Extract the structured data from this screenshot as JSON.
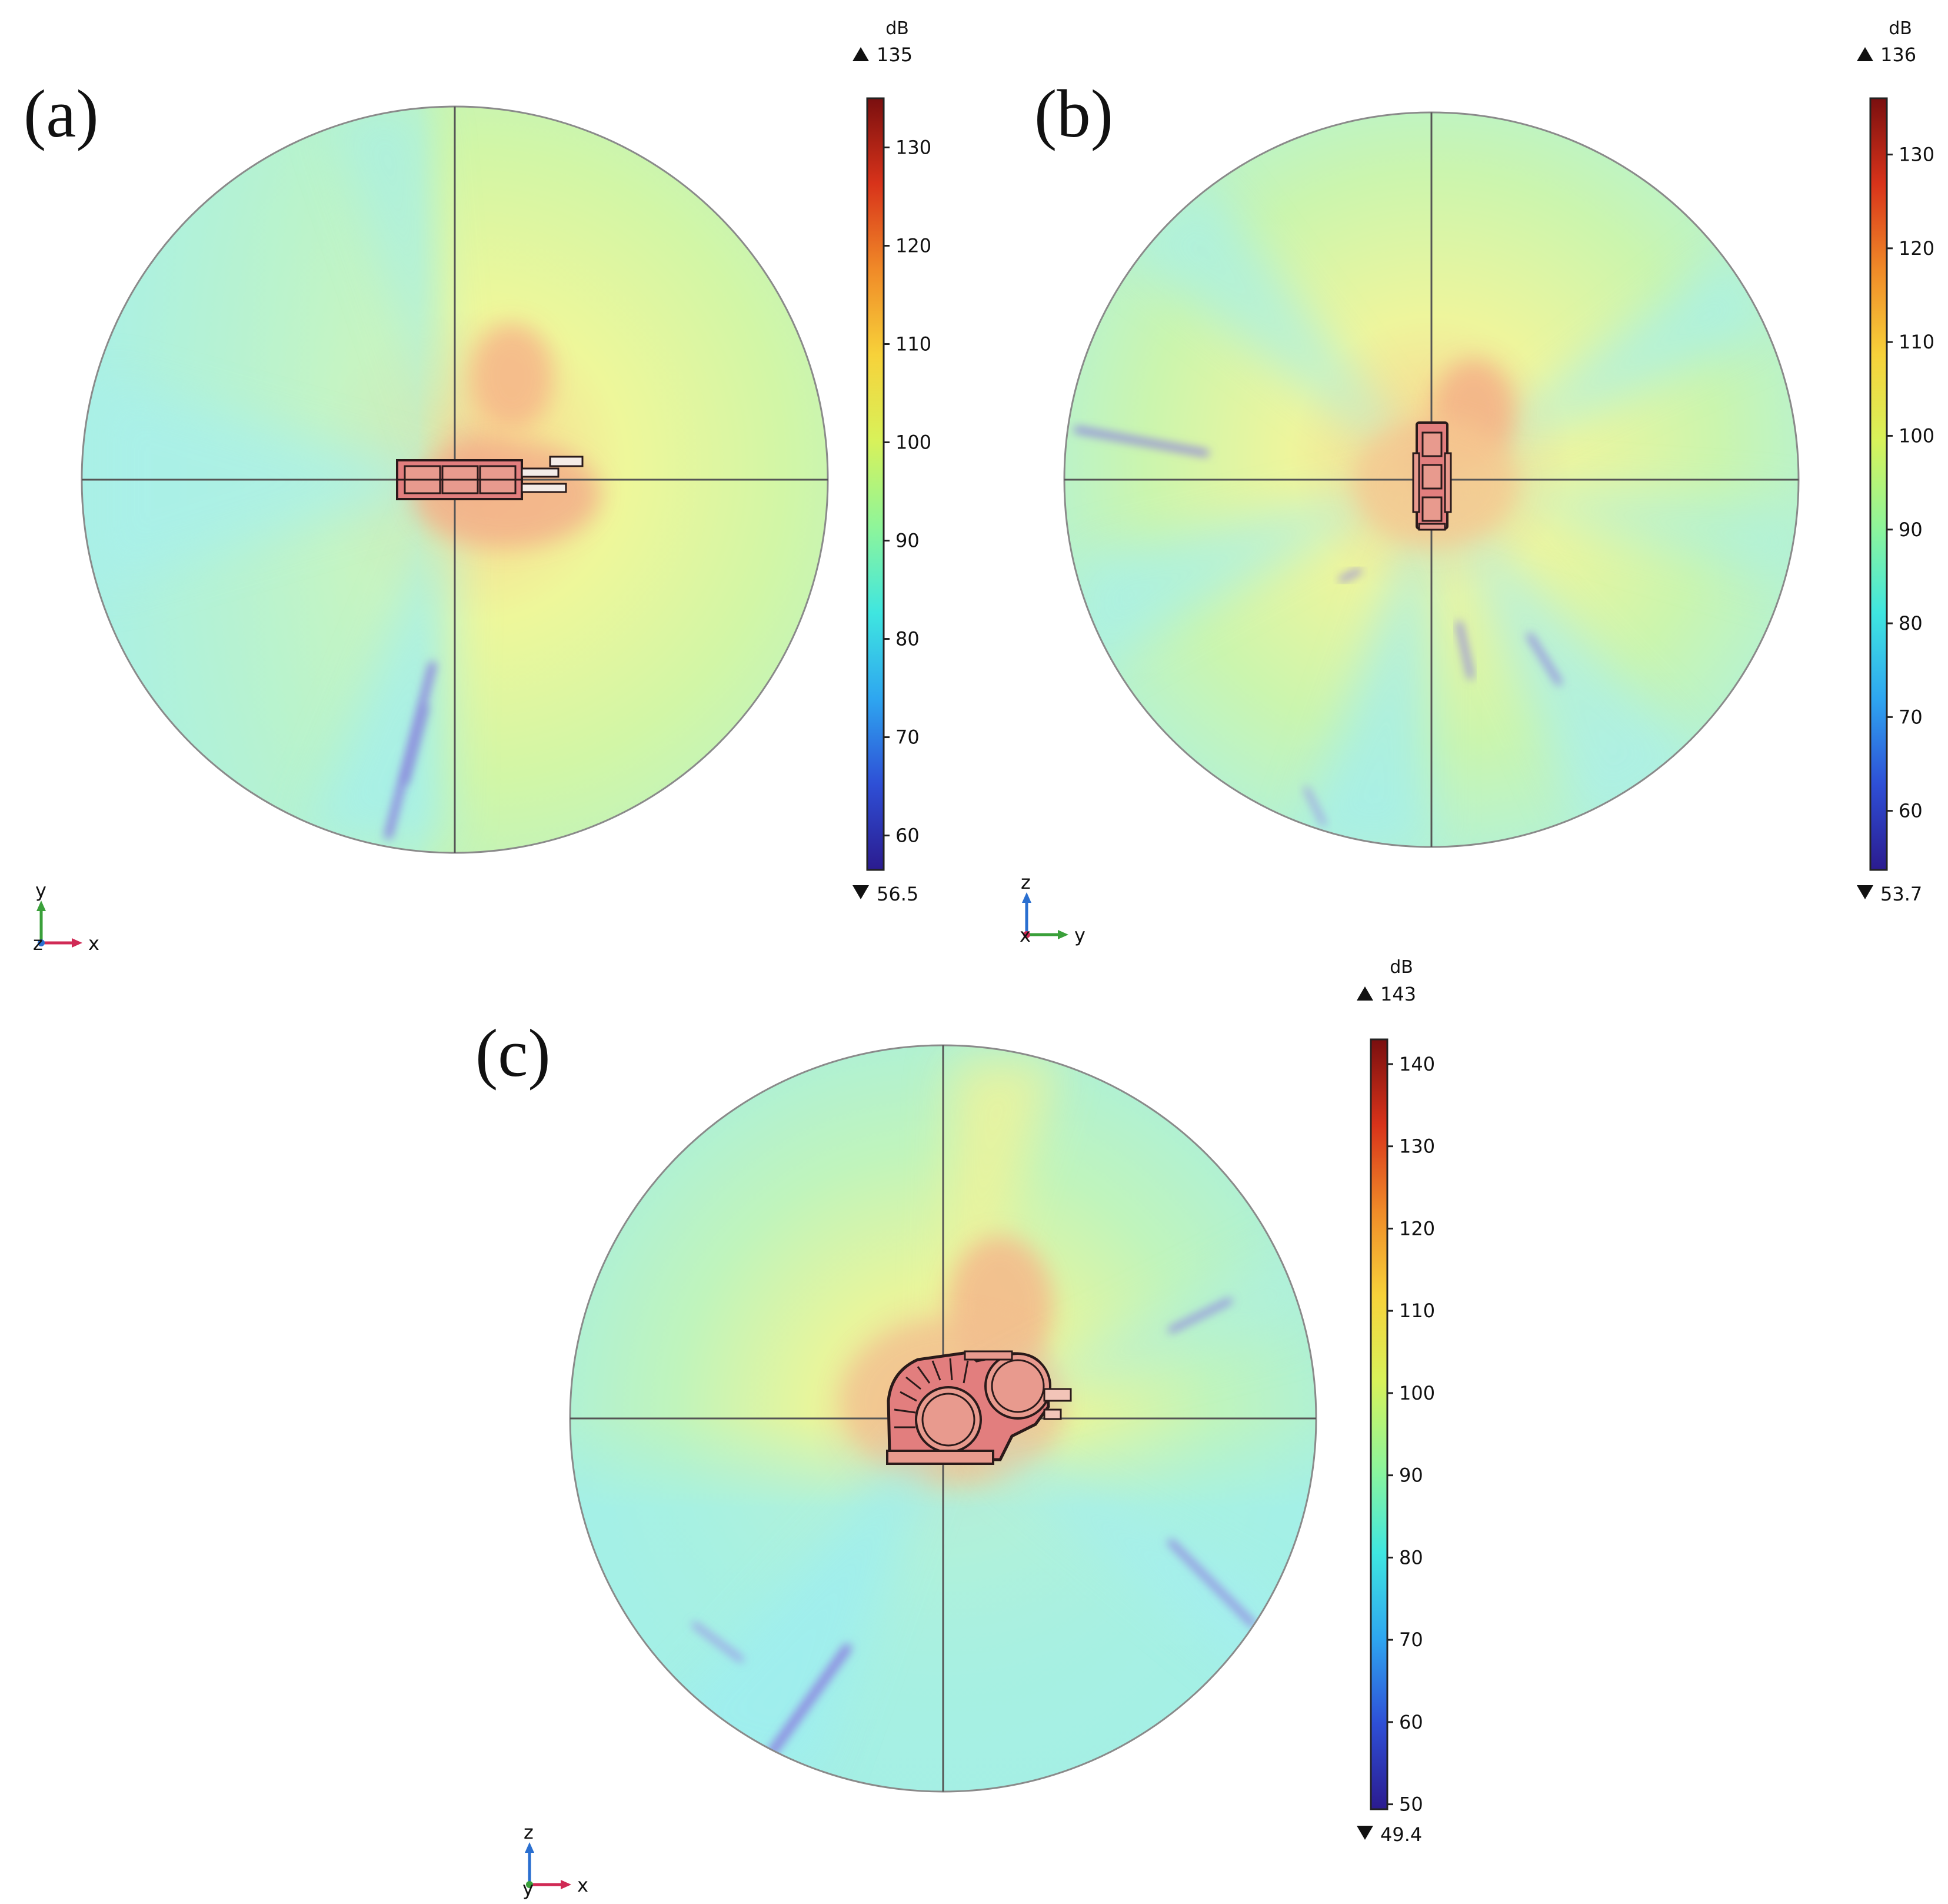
{
  "colormap": [
    "#2b1b8f",
    "#2e4fd6",
    "#2ea6f0",
    "#3fe6e0",
    "#8ef59a",
    "#d8f25a",
    "#f7d23a",
    "#f08a28",
    "#d8331a",
    "#7a0f0f"
  ],
  "field_colors": {
    "cyan": "#a8f3ea",
    "green": "#c4f7b4",
    "yellow": "#eef79a",
    "orange": "#f7c988",
    "hot": "#f0a68c",
    "streak": "#8f7fe0",
    "outline": "#7a7a7a",
    "geometry_fill": "#e27e7e",
    "geometry_stroke": "#2a1a1a"
  },
  "panels": [
    {
      "id": "a",
      "label": "(a)",
      "view": "top",
      "colorbar": {
        "unit": "dB",
        "max_label": "135",
        "min_label": "56.5",
        "min": 56.5,
        "max": 135,
        "ticks": [
          {
            "value": 60,
            "label": "60"
          },
          {
            "value": 70,
            "label": "70"
          },
          {
            "value": 80,
            "label": "80"
          },
          {
            "value": 90,
            "label": "90"
          },
          {
            "value": 100,
            "label": "100"
          },
          {
            "value": 110,
            "label": "110"
          },
          {
            "value": 120,
            "label": "120"
          },
          {
            "value": 130,
            "label": "130"
          }
        ]
      },
      "axes": {
        "up": "y",
        "right": "x",
        "out": "z",
        "up_color": "#3aa03a",
        "right_color": "#d02a55",
        "out_color": "#2a6fd0"
      }
    },
    {
      "id": "b",
      "label": "(b)",
      "view": "side",
      "colorbar": {
        "unit": "dB",
        "max_label": "136",
        "min_label": "53.7",
        "min": 53.7,
        "max": 136,
        "ticks": [
          {
            "value": 60,
            "label": "60"
          },
          {
            "value": 70,
            "label": "70"
          },
          {
            "value": 80,
            "label": "80"
          },
          {
            "value": 90,
            "label": "90"
          },
          {
            "value": 100,
            "label": "100"
          },
          {
            "value": 110,
            "label": "110"
          },
          {
            "value": 120,
            "label": "120"
          },
          {
            "value": 130,
            "label": "130"
          }
        ]
      },
      "axes": {
        "up": "z",
        "right": "y",
        "out": "x",
        "up_color": "#2a6fd0",
        "right_color": "#3aa03a",
        "out_color": "#d02a55"
      }
    },
    {
      "id": "c",
      "label": "(c)",
      "view": "front",
      "colorbar": {
        "unit": "dB",
        "max_label": "143",
        "min_label": "49.4",
        "min": 49.4,
        "max": 143,
        "ticks": [
          {
            "value": 50,
            "label": "50"
          },
          {
            "value": 60,
            "label": "60"
          },
          {
            "value": 70,
            "label": "70"
          },
          {
            "value": 80,
            "label": "80"
          },
          {
            "value": 90,
            "label": "90"
          },
          {
            "value": 100,
            "label": "100"
          },
          {
            "value": 110,
            "label": "110"
          },
          {
            "value": 120,
            "label": "120"
          },
          {
            "value": 130,
            "label": "130"
          },
          {
            "value": 140,
            "label": "140"
          }
        ]
      },
      "axes": {
        "up": "z",
        "right": "x",
        "out": "y",
        "up_color": "#2a6fd0",
        "right_color": "#d02a55",
        "out_color": "#3aa03a"
      }
    }
  ]
}
